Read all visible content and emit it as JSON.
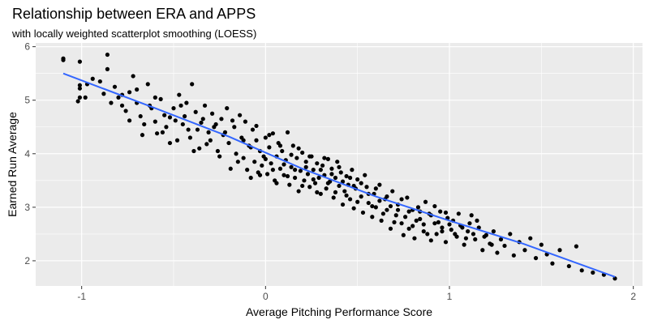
{
  "chart_data": {
    "type": "scatter",
    "title": "Relationship between ERA and APPS",
    "subtitle": "with locally weighted scatterplot smoothing (LOESS)",
    "xlabel": "Average Pitching Performance Score",
    "ylabel": "Earned Run Average",
    "xlim": [
      -1.25,
      2.05
    ],
    "ylim": [
      1.53,
      6.07
    ],
    "x_ticks": [
      -1,
      0,
      1,
      2
    ],
    "y_ticks": [
      2,
      3,
      4,
      5,
      6
    ],
    "x_tick_labels": [
      "-1",
      "0",
      "1",
      "2"
    ],
    "y_tick_labels": [
      "2",
      "3",
      "4",
      "5",
      "6"
    ],
    "grid": true,
    "legend": "none",
    "colors": {
      "panel": "#ebebeb",
      "grid": "#ffffff",
      "points": "#000000",
      "smooth": "#3366ff"
    },
    "smooth": {
      "method": "loess",
      "x": [
        -1.1,
        -0.6,
        -0.2,
        0.2,
        0.6,
        1.0,
        1.4,
        1.9
      ],
      "y": [
        5.5,
        4.85,
        4.32,
        3.72,
        3.2,
        2.75,
        2.32,
        1.7
      ]
    },
    "points": [
      [
        -1.1,
        5.78
      ],
      [
        -1.1,
        5.75
      ],
      [
        -1.01,
        5.72
      ],
      [
        -1.01,
        5.28
      ],
      [
        -1.01,
        5.22
      ],
      [
        -1.01,
        5.05
      ],
      [
        -1.02,
        4.98
      ],
      [
        -0.97,
        5.3
      ],
      [
        -0.94,
        5.4
      ],
      [
        -0.9,
        5.35
      ],
      [
        -0.86,
        5.85
      ],
      [
        -0.86,
        5.58
      ],
      [
        -0.82,
        5.25
      ],
      [
        -0.8,
        5.05
      ],
      [
        -0.78,
        4.9
      ],
      [
        -0.76,
        4.8
      ],
      [
        -0.74,
        5.15
      ],
      [
        -0.72,
        5.45
      ],
      [
        -0.7,
        4.95
      ],
      [
        -0.68,
        4.7
      ],
      [
        -0.67,
        4.35
      ],
      [
        -0.64,
        5.3
      ],
      [
        -0.62,
        4.85
      ],
      [
        -0.6,
        4.6
      ],
      [
        -0.59,
        4.38
      ],
      [
        -0.57,
        5.02
      ],
      [
        -0.55,
        4.72
      ],
      [
        -0.54,
        4.5
      ],
      [
        -0.52,
        4.2
      ],
      [
        -0.5,
        4.85
      ],
      [
        -0.49,
        4.62
      ],
      [
        -0.47,
        5.1
      ],
      [
        -0.46,
        4.9
      ],
      [
        -0.44,
        4.7
      ],
      [
        -0.42,
        4.45
      ],
      [
        -0.41,
        4.3
      ],
      [
        -0.4,
        5.3
      ],
      [
        -0.38,
        4.78
      ],
      [
        -0.36,
        4.1
      ],
      [
        -0.35,
        4.58
      ],
      [
        -0.33,
        4.9
      ],
      [
        -0.31,
        4.4
      ],
      [
        -0.3,
        4.25
      ],
      [
        -0.29,
        4.75
      ],
      [
        -0.27,
        4.55
      ],
      [
        -0.26,
        4.05
      ],
      [
        -0.24,
        4.65
      ],
      [
        -0.23,
        4.35
      ],
      [
        -0.21,
        4.85
      ],
      [
        -0.2,
        4.2
      ],
      [
        -0.19,
        3.72
      ],
      [
        -0.17,
        4.5
      ],
      [
        -0.16,
        4.0
      ],
      [
        -0.14,
        4.72
      ],
      [
        -0.13,
        4.3
      ],
      [
        -0.12,
        3.92
      ],
      [
        -0.11,
        4.6
      ],
      [
        -0.09,
        4.15
      ],
      [
        -0.08,
        3.55
      ],
      [
        -0.07,
        4.45
      ],
      [
        -0.06,
        3.85
      ],
      [
        -0.05,
        4.25
      ],
      [
        -0.04,
        3.65
      ],
      [
        -0.03,
        4.05
      ],
      [
        -0.02,
        3.78
      ],
      [
        -0.01,
        3.95
      ],
      [
        0.0,
        4.3
      ],
      [
        0.01,
        3.62
      ],
      [
        0.02,
        4.12
      ],
      [
        0.03,
        3.82
      ],
      [
        0.04,
        4.38
      ],
      [
        0.05,
        3.5
      ],
      [
        0.06,
        3.95
      ],
      [
        0.07,
        4.2
      ],
      [
        0.08,
        3.72
      ],
      [
        0.09,
        4.05
      ],
      [
        0.1,
        3.6
      ],
      [
        0.11,
        3.88
      ],
      [
        0.12,
        4.4
      ],
      [
        0.13,
        3.42
      ],
      [
        0.14,
        3.75
      ],
      [
        0.15,
        4.15
      ],
      [
        0.16,
        3.55
      ],
      [
        0.17,
        3.92
      ],
      [
        0.18,
        3.3
      ],
      [
        0.19,
        3.68
      ],
      [
        0.2,
        4.02
      ],
      [
        0.21,
        3.5
      ],
      [
        0.22,
        3.85
      ],
      [
        0.23,
        3.62
      ],
      [
        0.24,
        3.38
      ],
      [
        0.25,
        3.95
      ],
      [
        0.26,
        3.7
      ],
      [
        0.27,
        3.45
      ],
      [
        0.28,
        3.82
      ],
      [
        0.29,
        3.55
      ],
      [
        0.3,
        3.25
      ],
      [
        0.31,
        3.78
      ],
      [
        0.32,
        3.6
      ],
      [
        0.33,
        3.35
      ],
      [
        0.34,
        3.9
      ],
      [
        0.35,
        3.48
      ],
      [
        0.36,
        3.72
      ],
      [
        0.37,
        3.18
      ],
      [
        0.38,
        3.55
      ],
      [
        0.39,
        3.85
      ],
      [
        0.4,
        3.4
      ],
      [
        0.41,
        3.65
      ],
      [
        0.42,
        3.05
      ],
      [
        0.43,
        3.3
      ],
      [
        0.44,
        3.58
      ],
      [
        0.45,
        3.42
      ],
      [
        0.46,
        3.15
      ],
      [
        0.47,
        3.7
      ],
      [
        0.48,
        2.98
      ],
      [
        0.49,
        3.35
      ],
      [
        0.5,
        3.52
      ],
      [
        0.52,
        3.2
      ],
      [
        0.53,
        2.9
      ],
      [
        0.55,
        3.38
      ],
      [
        0.56,
        3.08
      ],
      [
        0.58,
        2.82
      ],
      [
        0.59,
        3.25
      ],
      [
        0.6,
        3.0
      ],
      [
        0.62,
        3.42
      ],
      [
        0.63,
        2.75
      ],
      [
        0.65,
        3.15
      ],
      [
        0.66,
        2.95
      ],
      [
        0.68,
        2.6
      ],
      [
        0.69,
        3.3
      ],
      [
        0.71,
        2.85
      ],
      [
        0.72,
        3.05
      ],
      [
        0.74,
        2.7
      ],
      [
        0.75,
        2.48
      ],
      [
        0.77,
        3.18
      ],
      [
        0.78,
        2.92
      ],
      [
        0.8,
        2.65
      ],
      [
        0.81,
        2.42
      ],
      [
        0.83,
        3.0
      ],
      [
        0.84,
        2.78
      ],
      [
        0.86,
        2.55
      ],
      [
        0.87,
        3.1
      ],
      [
        0.89,
        2.88
      ],
      [
        0.9,
        2.38
      ],
      [
        0.92,
        2.7
      ],
      [
        0.93,
        2.5
      ],
      [
        0.95,
        2.92
      ],
      [
        0.96,
        2.62
      ],
      [
        0.98,
        2.35
      ],
      [
        0.99,
        2.8
      ],
      [
        1.01,
        2.58
      ],
      [
        1.02,
        2.75
      ],
      [
        1.04,
        2.45
      ],
      [
        1.06,
        2.66
      ],
      [
        1.08,
        2.3
      ],
      [
        1.1,
        2.55
      ],
      [
        1.12,
        2.85
      ],
      [
        1.14,
        2.4
      ],
      [
        1.16,
        2.62
      ],
      [
        1.18,
        2.2
      ],
      [
        1.2,
        2.48
      ],
      [
        1.22,
        2.32
      ],
      [
        1.24,
        2.55
      ],
      [
        1.26,
        2.15
      ],
      [
        1.28,
        2.4
      ],
      [
        1.3,
        2.28
      ],
      [
        1.33,
        2.5
      ],
      [
        1.35,
        2.1
      ],
      [
        1.38,
        2.35
      ],
      [
        1.41,
        2.2
      ],
      [
        1.44,
        2.42
      ],
      [
        1.47,
        2.05
      ],
      [
        1.5,
        2.3
      ],
      [
        1.53,
        2.12
      ],
      [
        1.56,
        1.95
      ],
      [
        1.6,
        2.2
      ],
      [
        1.65,
        1.9
      ],
      [
        1.69,
        2.27
      ],
      [
        1.72,
        1.82
      ],
      [
        1.78,
        1.78
      ],
      [
        1.84,
        1.74
      ],
      [
        1.9,
        1.67
      ],
      [
        -0.98,
        5.05
      ],
      [
        -0.88,
        5.12
      ],
      [
        -0.84,
        4.95
      ],
      [
        -0.78,
        5.1
      ],
      [
        -0.74,
        4.62
      ],
      [
        -0.7,
        5.2
      ],
      [
        -0.66,
        4.55
      ],
      [
        -0.63,
        4.9
      ],
      [
        -0.6,
        5.05
      ],
      [
        -0.56,
        4.4
      ],
      [
        -0.52,
        4.68
      ],
      [
        -0.48,
        4.25
      ],
      [
        -0.45,
        4.55
      ],
      [
        -0.43,
        4.95
      ],
      [
        -0.39,
        4.05
      ],
      [
        -0.37,
        4.45
      ],
      [
        -0.34,
        4.65
      ],
      [
        -0.32,
        4.18
      ],
      [
        -0.28,
        4.5
      ],
      [
        -0.25,
        3.95
      ],
      [
        -0.22,
        4.4
      ],
      [
        -0.18,
        4.62
      ],
      [
        -0.15,
        3.85
      ],
      [
        -0.12,
        4.25
      ],
      [
        -0.1,
        3.7
      ],
      [
        -0.08,
        4.12
      ],
      [
        -0.05,
        4.52
      ],
      [
        -0.03,
        3.6
      ],
      [
        0.0,
        3.9
      ],
      [
        0.02,
        4.35
      ],
      [
        0.04,
        3.7
      ],
      [
        0.06,
        3.45
      ],
      [
        0.08,
        4.15
      ],
      [
        0.1,
        3.8
      ],
      [
        0.12,
        3.58
      ],
      [
        0.14,
        3.98
      ],
      [
        0.16,
        3.7
      ],
      [
        0.18,
        4.1
      ],
      [
        0.2,
        3.4
      ],
      [
        0.22,
        3.75
      ],
      [
        0.24,
        3.95
      ],
      [
        0.26,
        3.52
      ],
      [
        0.28,
        3.28
      ],
      [
        0.3,
        3.7
      ],
      [
        0.32,
        3.92
      ],
      [
        0.34,
        3.45
      ],
      [
        0.36,
        3.62
      ],
      [
        0.38,
        3.28
      ],
      [
        0.4,
        3.75
      ],
      [
        0.42,
        3.48
      ],
      [
        0.44,
        3.22
      ],
      [
        0.46,
        3.55
      ],
      [
        0.48,
        3.4
      ],
      [
        0.5,
        3.1
      ],
      [
        0.52,
        3.45
      ],
      [
        0.54,
        3.6
      ],
      [
        0.56,
        3.25
      ],
      [
        0.58,
        3.02
      ],
      [
        0.6,
        3.35
      ],
      [
        0.62,
        3.12
      ],
      [
        0.64,
        2.88
      ],
      [
        0.66,
        3.2
      ],
      [
        0.68,
        3.02
      ],
      [
        0.7,
        2.72
      ],
      [
        0.72,
        2.95
      ],
      [
        0.74,
        3.15
      ],
      [
        0.76,
        2.82
      ],
      [
        0.78,
        2.6
      ],
      [
        0.8,
        2.95
      ],
      [
        0.82,
        2.75
      ],
      [
        0.84,
        2.92
      ],
      [
        0.86,
        2.68
      ],
      [
        0.88,
        2.5
      ],
      [
        0.9,
        2.85
      ],
      [
        0.92,
        3.02
      ],
      [
        0.94,
        2.72
      ],
      [
        0.96,
        2.55
      ],
      [
        0.98,
        2.9
      ],
      [
        1.0,
        2.68
      ],
      [
        1.03,
        2.5
      ],
      [
        1.05,
        2.88
      ],
      [
        1.07,
        2.62
      ],
      [
        1.09,
        2.42
      ],
      [
        1.11,
        2.7
      ],
      [
        1.13,
        2.5
      ],
      [
        1.15,
        2.75
      ],
      [
        1.19,
        2.45
      ],
      [
        1.23,
        2.3
      ]
    ]
  }
}
